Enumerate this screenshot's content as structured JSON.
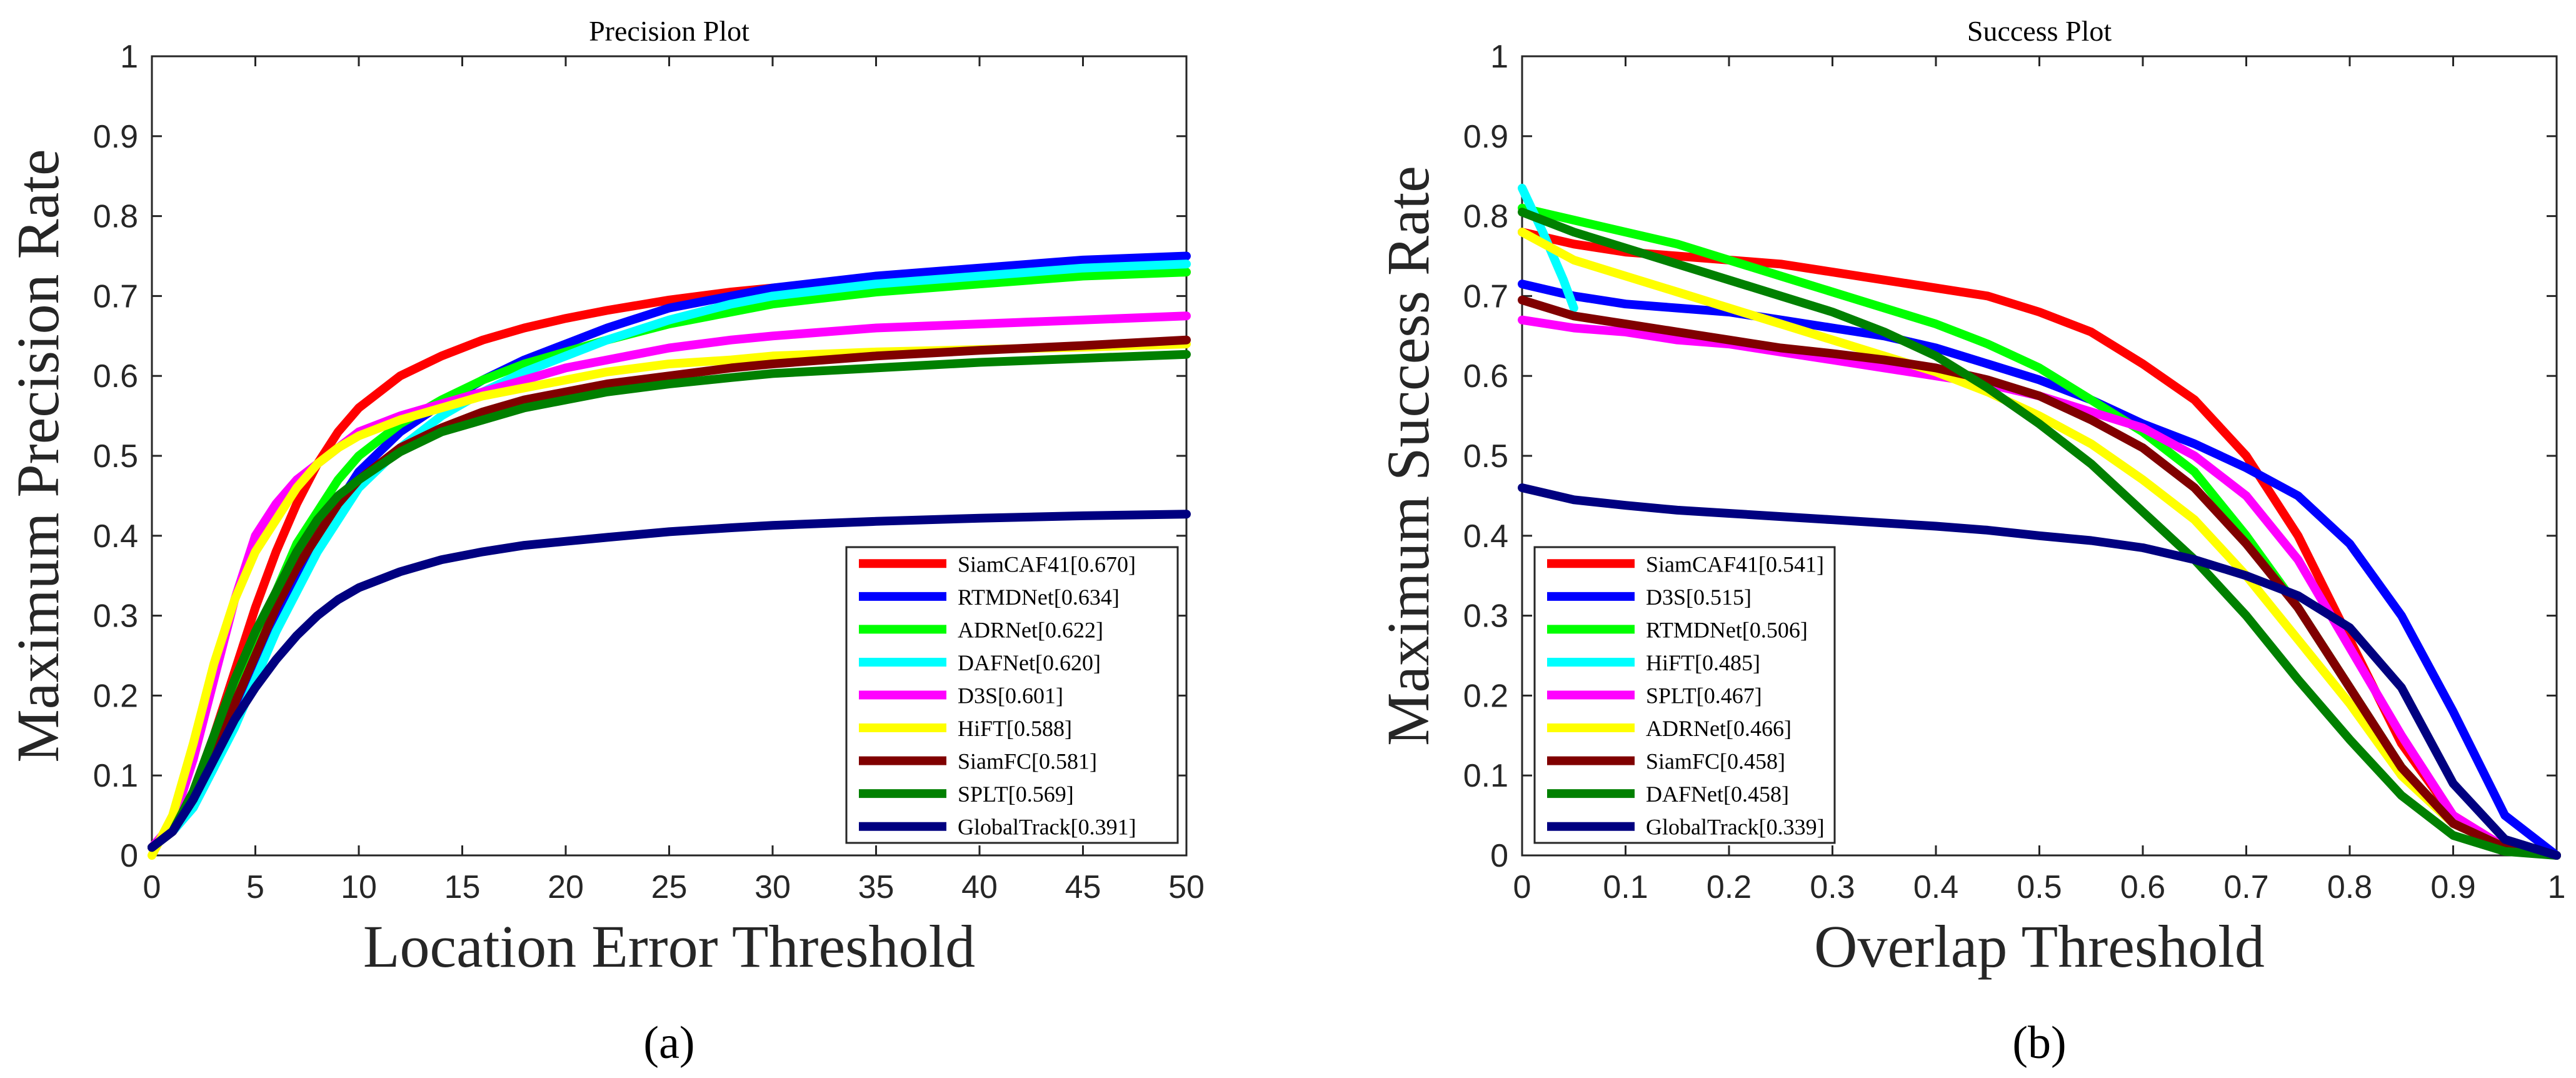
{
  "chart_data": [
    {
      "type": "line",
      "title": "Precision Plot",
      "xlabel": "Location Error Threshold",
      "ylabel": "Maximum Precision Rate",
      "caption": "(a)",
      "xlim": [
        0,
        50
      ],
      "ylim": [
        0,
        1
      ],
      "xticks": [
        0,
        5,
        10,
        15,
        20,
        25,
        30,
        35,
        40,
        45,
        50
      ],
      "yticks": [
        0,
        0.1,
        0.2,
        0.3,
        0.4,
        0.5,
        0.6,
        0.7,
        0.8,
        0.9,
        1
      ],
      "legend_position": "bottom-right",
      "x": [
        0,
        1,
        2,
        3,
        4,
        5,
        6,
        7,
        8,
        9,
        10,
        12,
        14,
        16,
        18,
        20,
        22,
        25,
        28,
        30,
        35,
        40,
        45,
        50
      ],
      "series": [
        {
          "name": "SiamCAF41[0.670]",
          "color": "#ff0000",
          "values": [
            0.01,
            0.03,
            0.08,
            0.15,
            0.23,
            0.31,
            0.38,
            0.44,
            0.49,
            0.53,
            0.56,
            0.6,
            0.625,
            0.645,
            0.66,
            0.672,
            0.682,
            0.695,
            0.705,
            0.71,
            0.72,
            0.725,
            0.728,
            0.73
          ]
        },
        {
          "name": "RTMDNet[0.634]",
          "color": "#0000ff",
          "values": [
            0.01,
            0.03,
            0.06,
            0.11,
            0.17,
            0.23,
            0.29,
            0.35,
            0.4,
            0.44,
            0.48,
            0.53,
            0.565,
            0.595,
            0.62,
            0.64,
            0.66,
            0.685,
            0.7,
            0.71,
            0.725,
            0.735,
            0.745,
            0.75
          ]
        },
        {
          "name": "ADRNet[0.622]",
          "color": "#00ff00",
          "values": [
            0.01,
            0.03,
            0.07,
            0.13,
            0.2,
            0.27,
            0.33,
            0.39,
            0.43,
            0.47,
            0.5,
            0.54,
            0.57,
            0.595,
            0.615,
            0.63,
            0.645,
            0.665,
            0.68,
            0.69,
            0.705,
            0.715,
            0.725,
            0.73
          ]
        },
        {
          "name": "DAFNet[0.620]",
          "color": "#00ffff",
          "values": [
            0.01,
            0.03,
            0.06,
            0.11,
            0.16,
            0.22,
            0.28,
            0.33,
            0.38,
            0.42,
            0.46,
            0.51,
            0.55,
            0.58,
            0.605,
            0.625,
            0.645,
            0.67,
            0.69,
            0.7,
            0.715,
            0.725,
            0.735,
            0.74
          ]
        },
        {
          "name": "D3S[0.601]",
          "color": "#ff00ff",
          "values": [
            0.01,
            0.04,
            0.12,
            0.22,
            0.32,
            0.4,
            0.44,
            0.47,
            0.49,
            0.51,
            0.53,
            0.55,
            0.565,
            0.58,
            0.595,
            0.61,
            0.62,
            0.635,
            0.645,
            0.65,
            0.66,
            0.665,
            0.67,
            0.675
          ]
        },
        {
          "name": "HiFT[0.588]",
          "color": "#ffff00",
          "values": [
            0.0,
            0.05,
            0.14,
            0.24,
            0.32,
            0.38,
            0.42,
            0.46,
            0.49,
            0.51,
            0.525,
            0.545,
            0.56,
            0.575,
            0.585,
            0.595,
            0.605,
            0.615,
            0.62,
            0.625,
            0.63,
            0.633,
            0.636,
            0.64
          ]
        },
        {
          "name": "SiamFC[0.581]",
          "color": "#800000",
          "values": [
            0.01,
            0.03,
            0.07,
            0.13,
            0.19,
            0.25,
            0.31,
            0.36,
            0.4,
            0.44,
            0.47,
            0.51,
            0.535,
            0.555,
            0.57,
            0.58,
            0.59,
            0.6,
            0.61,
            0.615,
            0.625,
            0.632,
            0.638,
            0.645
          ]
        },
        {
          "name": "SPLT[0.569]",
          "color": "#008000",
          "values": [
            0.01,
            0.03,
            0.08,
            0.15,
            0.22,
            0.28,
            0.33,
            0.38,
            0.42,
            0.45,
            0.47,
            0.505,
            0.53,
            0.545,
            0.56,
            0.57,
            0.58,
            0.59,
            0.598,
            0.603,
            0.61,
            0.617,
            0.622,
            0.627
          ]
        },
        {
          "name": "GlobalTrack[0.391]",
          "color": "#000080",
          "values": [
            0.01,
            0.03,
            0.07,
            0.12,
            0.17,
            0.21,
            0.245,
            0.275,
            0.3,
            0.32,
            0.335,
            0.355,
            0.37,
            0.38,
            0.388,
            0.393,
            0.398,
            0.405,
            0.41,
            0.413,
            0.418,
            0.422,
            0.425,
            0.427
          ]
        }
      ]
    },
    {
      "type": "line",
      "title": "Success Plot",
      "xlabel": "Overlap Threshold",
      "ylabel": "Maximum Success Rate",
      "caption": "(b)",
      "xlim": [
        0,
        1
      ],
      "ylim": [
        0,
        1
      ],
      "xticks": [
        0,
        0.1,
        0.2,
        0.3,
        0.4,
        0.5,
        0.6,
        0.7,
        0.8,
        0.9,
        1
      ],
      "yticks": [
        0,
        0.1,
        0.2,
        0.3,
        0.4,
        0.5,
        0.6,
        0.7,
        0.8,
        0.9,
        1
      ],
      "legend_position": "bottom-left",
      "series": [
        {
          "name": "SiamCAF41[0.541]",
          "color": "#ff0000",
          "x": [
            0,
            0.05,
            0.1,
            0.15,
            0.2,
            0.25,
            0.3,
            0.35,
            0.4,
            0.45,
            0.5,
            0.55,
            0.6,
            0.65,
            0.7,
            0.75,
            0.8,
            0.85,
            0.9,
            0.95,
            1
          ],
          "values": [
            0.78,
            0.765,
            0.755,
            0.75,
            0.745,
            0.74,
            0.73,
            0.72,
            0.71,
            0.7,
            0.68,
            0.655,
            0.615,
            0.57,
            0.5,
            0.4,
            0.27,
            0.14,
            0.05,
            0.01,
            0.0
          ]
        },
        {
          "name": "D3S[0.515]",
          "color": "#0000ff",
          "x": [
            0,
            0.05,
            0.1,
            0.15,
            0.2,
            0.25,
            0.3,
            0.35,
            0.4,
            0.45,
            0.5,
            0.55,
            0.6,
            0.65,
            0.7,
            0.75,
            0.8,
            0.85,
            0.9,
            0.95,
            1
          ],
          "values": [
            0.715,
            0.7,
            0.69,
            0.685,
            0.68,
            0.67,
            0.66,
            0.65,
            0.635,
            0.615,
            0.595,
            0.57,
            0.54,
            0.515,
            0.485,
            0.45,
            0.39,
            0.3,
            0.18,
            0.05,
            0.0
          ]
        },
        {
          "name": "RTMDNet[0.506]",
          "color": "#00ff00",
          "x": [
            0,
            0.05,
            0.1,
            0.15,
            0.2,
            0.25,
            0.3,
            0.35,
            0.4,
            0.45,
            0.5,
            0.55,
            0.6,
            0.65,
            0.7,
            0.75,
            0.8,
            0.85,
            0.9,
            0.95,
            1
          ],
          "values": [
            0.81,
            0.795,
            0.78,
            0.765,
            0.745,
            0.725,
            0.705,
            0.685,
            0.665,
            0.64,
            0.61,
            0.57,
            0.53,
            0.48,
            0.4,
            0.31,
            0.21,
            0.11,
            0.04,
            0.01,
            0.0
          ]
        },
        {
          "name": "HiFT[0.485]",
          "color": "#00ffff",
          "x": [
            0,
            0.02,
            0.04,
            0.05
          ],
          "values": [
            0.835,
            0.78,
            0.72,
            0.685
          ]
        },
        {
          "name": "SPLT[0.467]",
          "color": "#ff00ff",
          "x": [
            0,
            0.05,
            0.1,
            0.15,
            0.2,
            0.25,
            0.3,
            0.35,
            0.4,
            0.45,
            0.5,
            0.55,
            0.6,
            0.65,
            0.7,
            0.75,
            0.8,
            0.85,
            0.9,
            0.95,
            1
          ],
          "values": [
            0.67,
            0.66,
            0.655,
            0.645,
            0.64,
            0.63,
            0.62,
            0.61,
            0.6,
            0.59,
            0.575,
            0.555,
            0.535,
            0.5,
            0.45,
            0.37,
            0.26,
            0.15,
            0.05,
            0.01,
            0.0
          ]
        },
        {
          "name": "ADRNet[0.466]",
          "color": "#ffff00",
          "x": [
            0,
            0.05,
            0.1,
            0.15,
            0.2,
            0.25,
            0.3,
            0.35,
            0.4,
            0.45,
            0.5,
            0.55,
            0.6,
            0.65,
            0.7,
            0.75,
            0.8,
            0.85,
            0.9,
            0.95,
            1
          ],
          "values": [
            0.78,
            0.745,
            0.725,
            0.705,
            0.685,
            0.665,
            0.645,
            0.625,
            0.605,
            0.58,
            0.55,
            0.515,
            0.47,
            0.42,
            0.35,
            0.27,
            0.19,
            0.1,
            0.04,
            0.01,
            0.0
          ]
        },
        {
          "name": "SiamFC[0.458]",
          "color": "#800000",
          "x": [
            0,
            0.05,
            0.1,
            0.15,
            0.2,
            0.25,
            0.3,
            0.35,
            0.4,
            0.45,
            0.5,
            0.55,
            0.6,
            0.65,
            0.7,
            0.75,
            0.8,
            0.85,
            0.9,
            0.95,
            1
          ],
          "values": [
            0.695,
            0.675,
            0.665,
            0.655,
            0.645,
            0.635,
            0.628,
            0.62,
            0.61,
            0.595,
            0.575,
            0.545,
            0.51,
            0.46,
            0.39,
            0.31,
            0.21,
            0.11,
            0.04,
            0.01,
            0.0
          ]
        },
        {
          "name": "DAFNet[0.458]",
          "color": "#008000",
          "x": [
            0,
            0.05,
            0.1,
            0.15,
            0.2,
            0.25,
            0.3,
            0.35,
            0.4,
            0.45,
            0.5,
            0.55,
            0.6,
            0.65,
            0.7,
            0.75,
            0.8,
            0.85,
            0.9,
            0.95,
            1
          ],
          "values": [
            0.805,
            0.78,
            0.76,
            0.74,
            0.72,
            0.7,
            0.68,
            0.655,
            0.625,
            0.585,
            0.54,
            0.49,
            0.43,
            0.37,
            0.3,
            0.22,
            0.145,
            0.075,
            0.025,
            0.005,
            0.0
          ]
        },
        {
          "name": "GlobalTrack[0.339]",
          "color": "#000080",
          "x": [
            0,
            0.05,
            0.1,
            0.15,
            0.2,
            0.25,
            0.3,
            0.35,
            0.4,
            0.45,
            0.5,
            0.55,
            0.6,
            0.65,
            0.7,
            0.75,
            0.8,
            0.85,
            0.9,
            0.95,
            1
          ],
          "values": [
            0.46,
            0.445,
            0.438,
            0.432,
            0.428,
            0.424,
            0.42,
            0.416,
            0.412,
            0.407,
            0.4,
            0.394,
            0.385,
            0.37,
            0.35,
            0.325,
            0.285,
            0.21,
            0.09,
            0.02,
            0.0
          ]
        }
      ]
    }
  ]
}
